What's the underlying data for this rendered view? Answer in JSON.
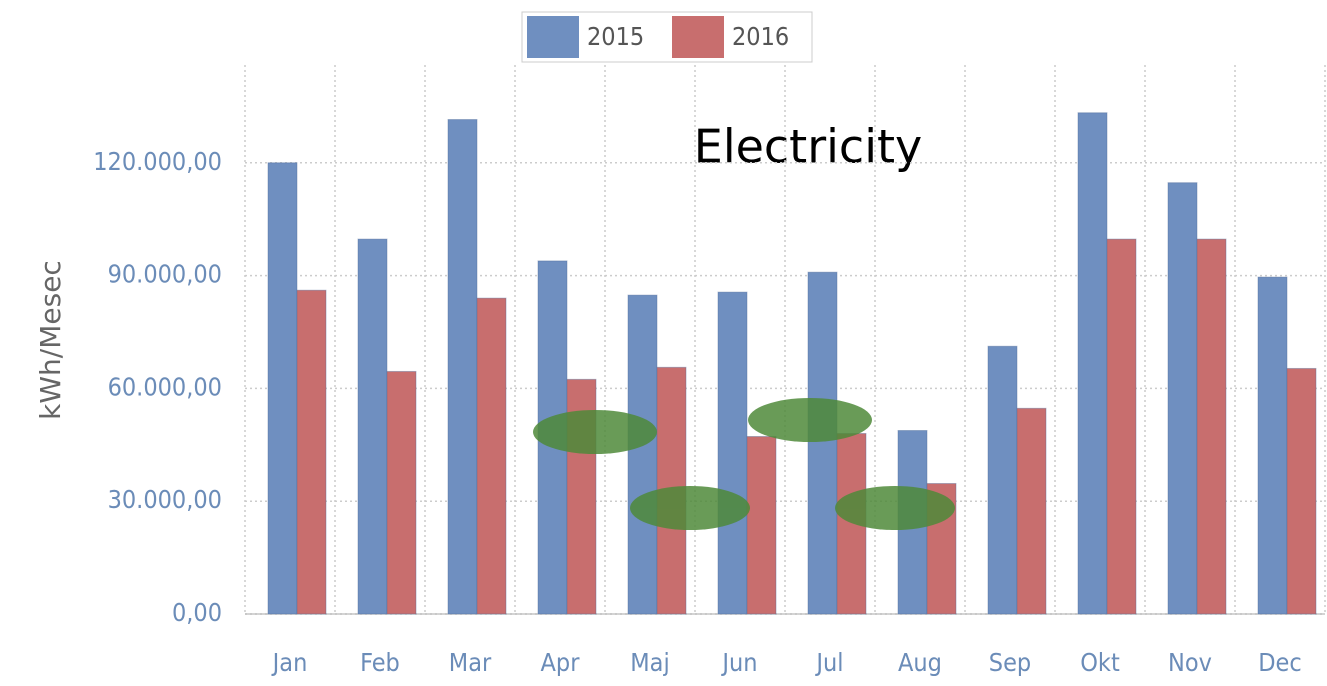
{
  "chart_data": {
    "type": "bar",
    "title": "Electricity",
    "y_label": "kWh/Mesec",
    "categories": [
      "Jan",
      "Feb",
      "Mar",
      "Apr",
      "Maj",
      "Jun",
      "Jul",
      "Aug",
      "Sep",
      "Okt",
      "Nov",
      "Dec"
    ],
    "series": [
      {
        "name": "2015",
        "color": "#6f8fc0",
        "values": [
          120000,
          99700,
          131500,
          93900,
          84800,
          85600,
          90900,
          48800,
          71200,
          133300,
          114700,
          89600
        ]
      },
      {
        "name": "2016",
        "color": "#c86e6e",
        "values": [
          86100,
          64500,
          84000,
          62400,
          65600,
          47200,
          48000,
          34700,
          54700,
          99700,
          99700,
          65300
        ]
      }
    ],
    "ylim": [
      0,
      146000
    ],
    "yticks": [
      {
        "value": 0,
        "label": "0,00"
      },
      {
        "value": 30000,
        "label": "30.000,00"
      },
      {
        "value": 60000,
        "label": "60.000,00"
      },
      {
        "value": 90000,
        "label": "90.000,00"
      },
      {
        "value": 120000,
        "label": "120.000,00"
      }
    ],
    "grid": true
  }
}
